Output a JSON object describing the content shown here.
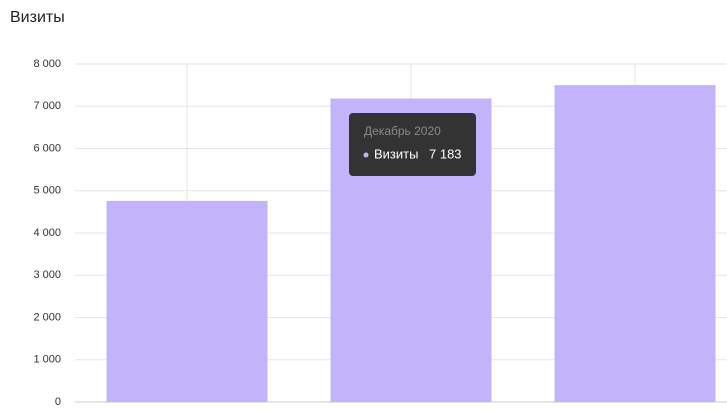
{
  "chart_data": {
    "type": "bar",
    "title": "Визиты",
    "categories": [
      null,
      "Декабрь 2020",
      null
    ],
    "series": [
      {
        "name": "Визиты",
        "color": "#c2b3fa",
        "values": [
          4760,
          7183,
          7500
        ],
        "value_labels": [
          null,
          "7 183",
          null
        ]
      }
    ],
    "ylim": [
      0,
      8000
    ],
    "yticks": [
      {
        "value": 0,
        "label": "0"
      },
      {
        "value": 1000,
        "label": "1 000"
      },
      {
        "value": 2000,
        "label": "2 000"
      },
      {
        "value": 3000,
        "label": "3 000"
      },
      {
        "value": 4000,
        "label": "4 000"
      },
      {
        "value": 5000,
        "label": "5 000"
      },
      {
        "value": 6000,
        "label": "6 000"
      },
      {
        "value": 7000,
        "label": "7 000"
      },
      {
        "value": 8000,
        "label": "8 000"
      }
    ],
    "grid": true
  }
}
